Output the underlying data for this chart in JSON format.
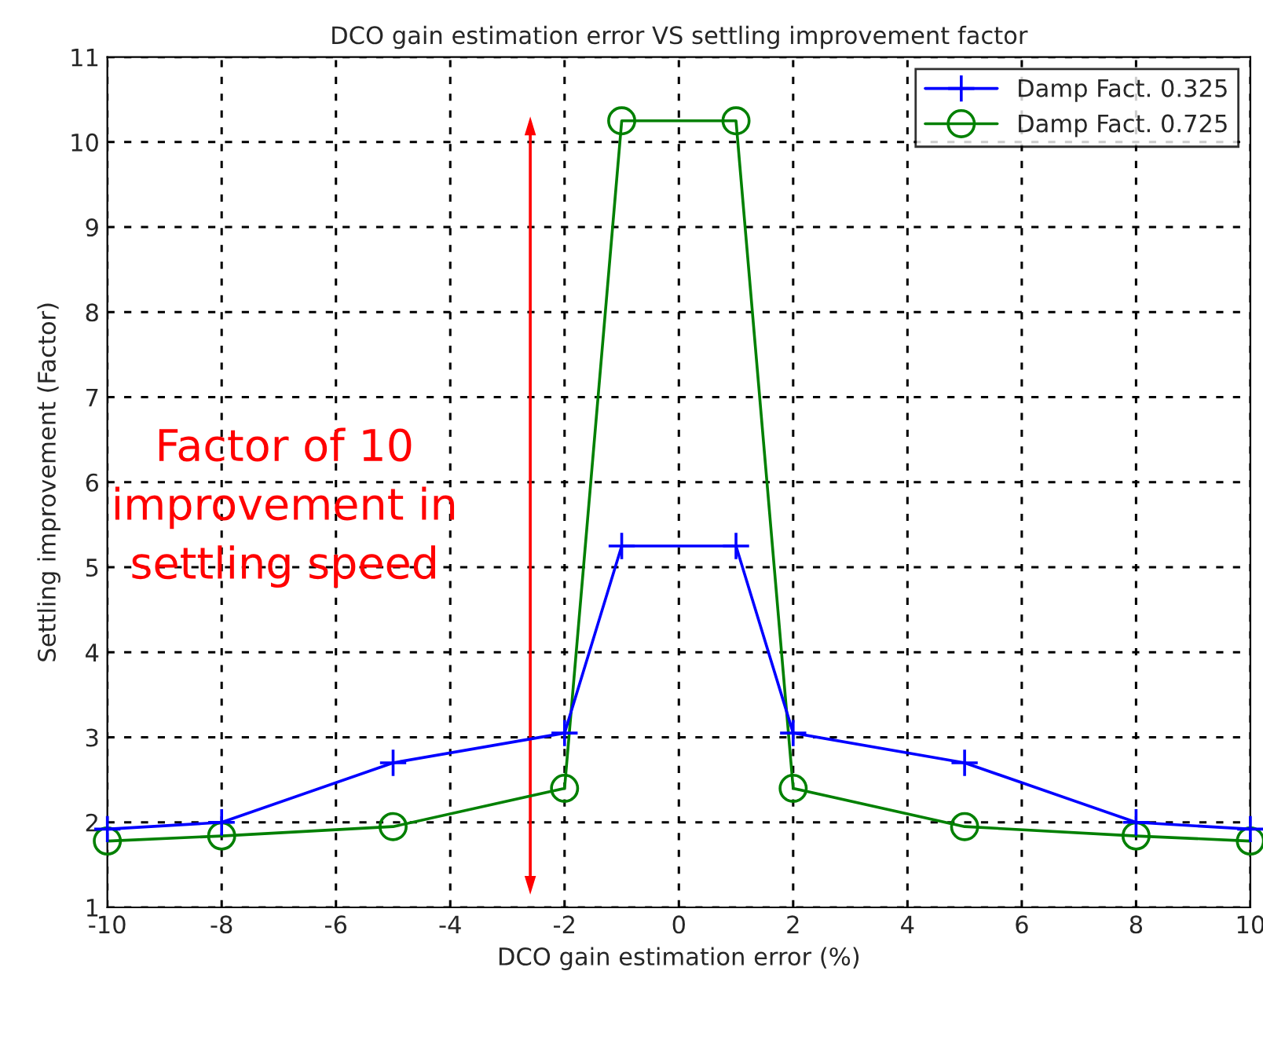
{
  "chart_data": {
    "type": "line",
    "title": "DCO gain estimation error VS settling improvement factor",
    "xlabel": "DCO gain estimation error (%)",
    "ylabel": "Settling improvement (Factor)",
    "x": [
      -10,
      -8,
      -5,
      -2,
      -1,
      1,
      2,
      5,
      8,
      10
    ],
    "series": [
      {
        "name": "Damp Fact. 0.325",
        "color": "#0000ff",
        "marker": "cross",
        "values": [
          1.92,
          2.0,
          2.7,
          3.05,
          5.25,
          5.25,
          3.05,
          2.7,
          2.0,
          1.92
        ]
      },
      {
        "name": "Damp Fact. 0.725",
        "color": "#008000",
        "marker": "circle",
        "values": [
          1.78,
          1.84,
          1.95,
          2.4,
          10.25,
          10.25,
          2.4,
          1.95,
          1.84,
          1.78
        ]
      }
    ],
    "xlim": [
      -10,
      10
    ],
    "xticks": [
      -10,
      -8,
      -6,
      -4,
      -2,
      0,
      2,
      4,
      6,
      8,
      10
    ],
    "ylim": [
      1,
      11
    ],
    "yticks": [
      1,
      2,
      3,
      4,
      5,
      6,
      7,
      8,
      9,
      10,
      11
    ],
    "grid": true,
    "legend": "top right",
    "line_style": "solid",
    "annotations": [
      "Factor of 10\nimprovement in\nsettling speed"
    ]
  }
}
